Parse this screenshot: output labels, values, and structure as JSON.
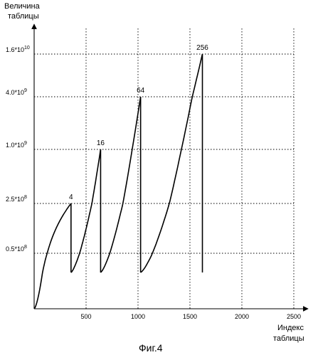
{
  "chart_data": {
    "type": "line",
    "title": "",
    "ylabel": [
      "Величина",
      "таблицы"
    ],
    "xlabel": [
      "Индекс",
      "таблицы"
    ],
    "caption": "Фиг.4",
    "xlim": [
      0,
      2500
    ],
    "x_ticks": [
      500,
      1000,
      1500,
      2000,
      2500
    ],
    "y_ticks": [
      {
        "label": "0.5*10",
        "exp": "8",
        "value": 50000000.0
      },
      {
        "label": "2.5*10",
        "exp": "8",
        "value": 250000000.0
      },
      {
        "label": "1.0*10",
        "exp": "9",
        "value": 1000000000.0
      },
      {
        "label": "4.0*10",
        "exp": "9",
        "value": 4000000000.0
      },
      {
        "label": "1.6*10",
        "exp": "10",
        "value": 16000000000.0
      }
    ],
    "grid": true,
    "segments": [
      {
        "x_start": 0,
        "x_end": 355,
        "y_start": 0,
        "y_end": 250000000.0,
        "peak_label": "4"
      },
      {
        "x_start": 355,
        "x_end": 640,
        "y_start": 25000000.0,
        "y_end": 1000000000.0,
        "peak_label": "16"
      },
      {
        "x_start": 640,
        "x_end": 1025,
        "y_start": 25000000.0,
        "y_end": 4000000000.0,
        "peak_label": "64"
      },
      {
        "x_start": 1025,
        "x_end": 1620,
        "y_start": 25000000.0,
        "y_end": 16000000000.0,
        "peak_label": "256"
      }
    ],
    "drops": [
      {
        "x": 355,
        "from": 250000000.0,
        "to": 25000000.0
      },
      {
        "x": 640,
        "from": 1000000000.0,
        "to": 25000000.0
      },
      {
        "x": 1025,
        "from": 4000000000.0,
        "to": 25000000.0
      },
      {
        "x": 1620,
        "from": 16000000000.0,
        "to": 25000000.0
      }
    ]
  }
}
